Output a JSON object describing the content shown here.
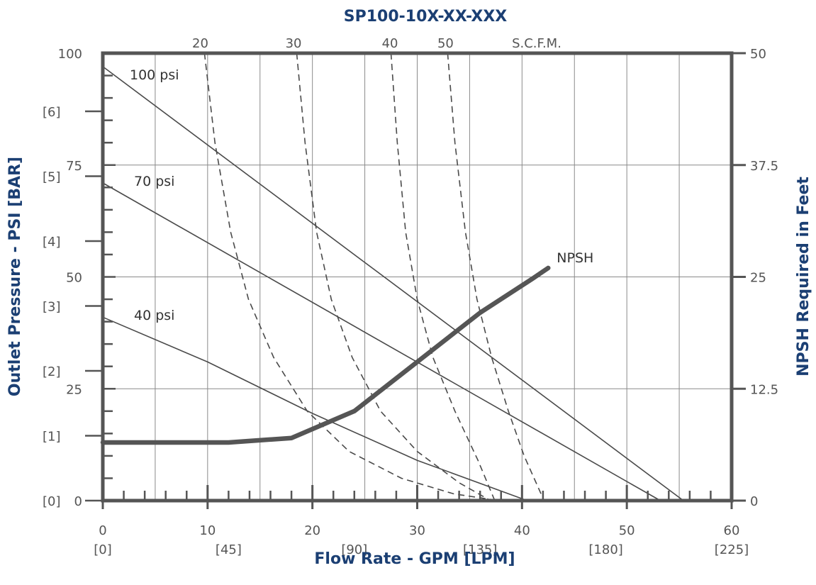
{
  "chart_data": {
    "type": "line",
    "title": "SP100-10X-XX-XXX",
    "xlabel": "Flow Rate - GPM [LPM]",
    "ylabel": "Outlet Pressure - PSI [BAR]",
    "y2label": "NPSH Required in Feet",
    "top_axis_unit": "S.C.F.M.",
    "xlim": [
      0,
      60
    ],
    "ylim": [
      0,
      100
    ],
    "y2lim": [
      0,
      50
    ],
    "grid": true,
    "x_ticks": [
      {
        "value": 0,
        "label": "0",
        "sub": "[0]"
      },
      {
        "value": 10,
        "label": "10",
        "sub": "[45]"
      },
      {
        "value": 20,
        "label": "20",
        "sub": "[90]"
      },
      {
        "value": 30,
        "label": "30",
        "sub": "[135]"
      },
      {
        "value": 40,
        "label": "40",
        "sub": "[180]"
      },
      {
        "value": 50,
        "label": "50",
        "sub": "[225]"
      },
      {
        "value": 60,
        "label": "60",
        "sub": ""
      }
    ],
    "x_sub_labels": [
      {
        "value": 0,
        "label": "[0]"
      },
      {
        "value": 12,
        "label": "[45]"
      },
      {
        "value": 24,
        "label": "[90]"
      },
      {
        "value": 36,
        "label": "[135]"
      },
      {
        "value": 48,
        "label": "[180]"
      },
      {
        "value": 60,
        "label": "[225]"
      }
    ],
    "y_ticks": [
      {
        "value": 0,
        "label": "0"
      },
      {
        "value": 25,
        "label": "25"
      },
      {
        "value": 50,
        "label": "50"
      },
      {
        "value": 75,
        "label": "75"
      },
      {
        "value": 100,
        "label": "100"
      }
    ],
    "y_bar_labels": [
      {
        "value": 0,
        "label": "[0]"
      },
      {
        "value": 14.5,
        "label": "[1]"
      },
      {
        "value": 29,
        "label": "[2]"
      },
      {
        "value": 43.5,
        "label": "[3]"
      },
      {
        "value": 58,
        "label": "[4]"
      },
      {
        "value": 72.5,
        "label": "[5]"
      },
      {
        "value": 87,
        "label": "[6]"
      }
    ],
    "y2_ticks": [
      {
        "value": 0,
        "label": "0"
      },
      {
        "value": 12.5,
        "label": "12.5"
      },
      {
        "value": 25,
        "label": "25"
      },
      {
        "value": 37.5,
        "label": "37.5"
      },
      {
        "value": 50,
        "label": "50"
      }
    ],
    "top_ticks": [
      {
        "x": 9.3,
        "label": "20"
      },
      {
        "x": 18.2,
        "label": "30"
      },
      {
        "x": 27.4,
        "label": "40"
      },
      {
        "x": 32.7,
        "label": "50"
      }
    ],
    "pressure_lines": [
      {
        "name": "100 psi",
        "x": [
          0,
          55.4
        ],
        "y": [
          97,
          0
        ]
      },
      {
        "name": "70 psi",
        "x": [
          0,
          53.2
        ],
        "y": [
          71,
          0
        ]
      },
      {
        "name": "40 psi",
        "x": [
          0,
          10,
          20,
          30,
          40.5
        ],
        "y": [
          41,
          31,
          19.5,
          9,
          0
        ]
      }
    ],
    "air_curves": [
      {
        "name": "20",
        "x": [
          9.7,
          10.7,
          12.2,
          13.9,
          16.3,
          19.5,
          23.5,
          28.5,
          33.5,
          37.8
        ],
        "y": [
          100,
          80,
          60,
          45,
          32,
          20,
          11,
          5,
          1.5,
          0
        ]
      },
      {
        "name": "30",
        "x": [
          18.5,
          19.3,
          20.4,
          21.8,
          23.8,
          26.5,
          30.0,
          34.0,
          37.0
        ],
        "y": [
          100,
          80,
          60,
          45,
          32,
          20,
          11,
          4,
          0
        ]
      },
      {
        "name": "40",
        "x": [
          27.5,
          28.1,
          28.9,
          30.0,
          31.5,
          33.6,
          35.8,
          37.4
        ],
        "y": [
          100,
          80,
          60,
          45,
          32,
          20,
          9,
          0
        ]
      },
      {
        "name": "50",
        "x": [
          32.9,
          33.6,
          34.6,
          35.7,
          37.1,
          38.7,
          40.2,
          42.1
        ],
        "y": [
          100,
          80,
          60,
          45,
          32,
          20,
          10,
          0
        ]
      }
    ],
    "npsh_curve": {
      "name": "NPSH",
      "x": [
        0,
        6,
        12,
        18,
        24,
        30,
        36,
        41,
        42.5
      ],
      "y2": [
        6.5,
        6.5,
        6.5,
        7.0,
        10.0,
        15.5,
        21.0,
        24.8,
        26.0
      ]
    }
  }
}
